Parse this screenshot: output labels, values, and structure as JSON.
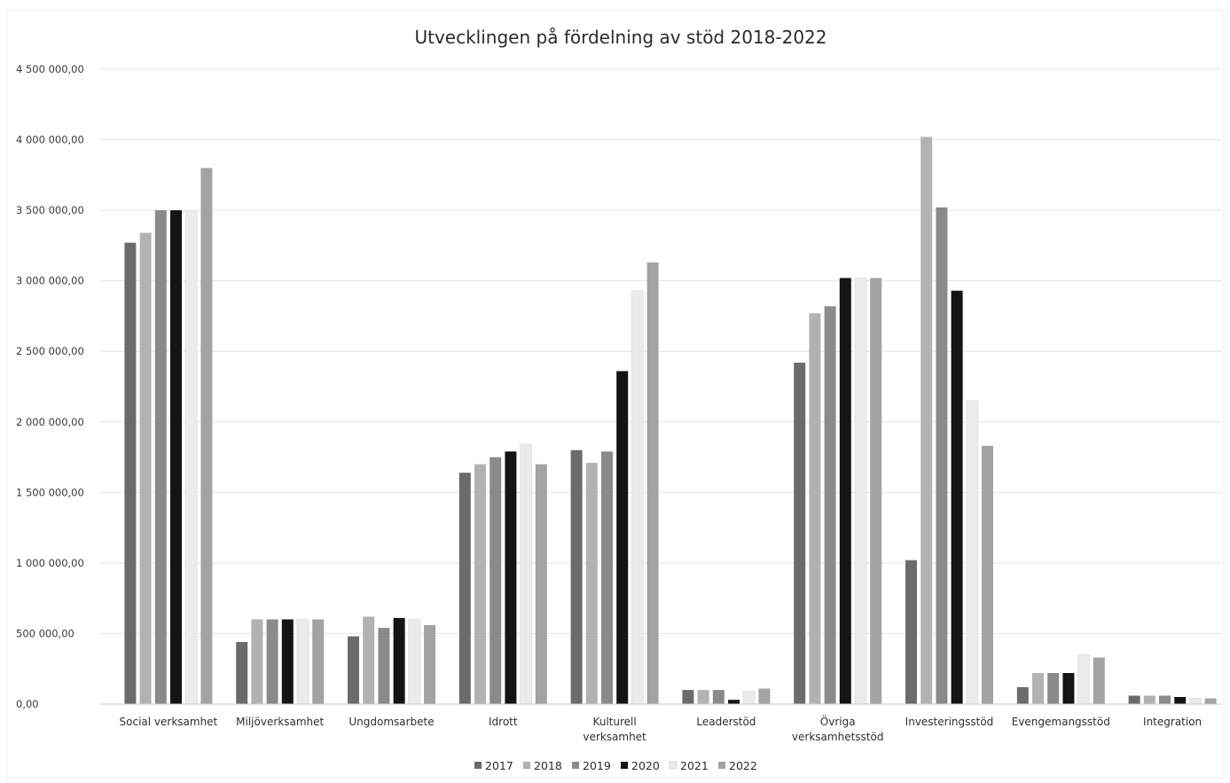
{
  "chart_data": {
    "type": "bar",
    "title": "Utvecklingen på fördelning av stöd 2018-2022",
    "xlabel": "",
    "ylabel": "",
    "ylim": [
      0,
      4500000
    ],
    "yticks": [
      0,
      500000,
      1000000,
      1500000,
      2000000,
      2500000,
      3000000,
      3500000,
      4000000,
      4500000
    ],
    "ytick_labels": [
      "0,00",
      "500 000,00",
      "1 000 000,00",
      "1 500 000,00",
      "2 000 000,00",
      "2 500 000,00",
      "3 000 000,00",
      "3 500 000,00",
      "4 000 000,00",
      "4 500 000,00"
    ],
    "grid": true,
    "legend_position": "bottom",
    "categories": [
      [
        "Social verksamhet"
      ],
      [
        "Miljöverksamhet"
      ],
      [
        "Ungdomsarbete"
      ],
      [
        "Idrott"
      ],
      [
        "Kulturell",
        "verksamhet"
      ],
      [
        "Leaderstöd"
      ],
      [
        "Övriga",
        "verksamhetsstöd"
      ],
      [
        "Investeringsstöd"
      ],
      [
        "Evengemangsstöd"
      ],
      [
        "Integration"
      ]
    ],
    "series": [
      {
        "name": "2017",
        "color": "#6b6b6b",
        "values": [
          3270000,
          440000,
          480000,
          1640000,
          1800000,
          100000,
          2420000,
          1020000,
          120000,
          60000
        ]
      },
      {
        "name": "2018",
        "color": "#b2b2b2",
        "values": [
          3340000,
          600000,
          620000,
          1700000,
          1710000,
          100000,
          2770000,
          4020000,
          220000,
          60000
        ]
      },
      {
        "name": "2019",
        "color": "#8a8a8a",
        "values": [
          3500000,
          600000,
          540000,
          1750000,
          1790000,
          100000,
          2820000,
          3520000,
          220000,
          60000
        ]
      },
      {
        "name": "2020",
        "color": "#141414",
        "values": [
          3500000,
          600000,
          610000,
          1790000,
          2360000,
          30000,
          3020000,
          2930000,
          220000,
          50000
        ]
      },
      {
        "name": "2021",
        "color": "#ebebeb",
        "values": [
          3500000,
          600000,
          600000,
          1840000,
          2930000,
          90000,
          3020000,
          2150000,
          350000,
          40000
        ]
      },
      {
        "name": "2022",
        "color": "#a3a3a3",
        "values": [
          3800000,
          600000,
          560000,
          1700000,
          3130000,
          110000,
          3020000,
          1830000,
          330000,
          40000
        ]
      }
    ]
  }
}
